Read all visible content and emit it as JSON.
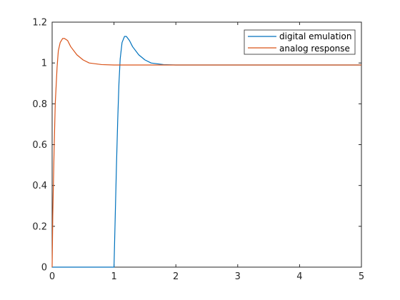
{
  "chart_data": {
    "type": "line",
    "title": "",
    "xlabel": "",
    "ylabel": "",
    "xlim": [
      0,
      5
    ],
    "ylim": [
      0,
      1.2
    ],
    "xticks": [
      "0",
      "1",
      "2",
      "3",
      "4",
      "5"
    ],
    "yticks": [
      "0",
      "0.2",
      "0.4",
      "0.6",
      "0.8",
      "1",
      "1.2"
    ],
    "grid": false,
    "legend_position": "top-right",
    "series": [
      {
        "name": "digital emulation",
        "color": "#0072BD",
        "points": [
          [
            0,
            0
          ],
          [
            0.5,
            0
          ],
          [
            0.99,
            0
          ],
          [
            1.0,
            0.0
          ],
          [
            1.02,
            0.25
          ],
          [
            1.04,
            0.5
          ],
          [
            1.06,
            0.72
          ],
          [
            1.08,
            0.9
          ],
          [
            1.1,
            1.02
          ],
          [
            1.13,
            1.1
          ],
          [
            1.17,
            1.13
          ],
          [
            1.2,
            1.13
          ],
          [
            1.25,
            1.11
          ],
          [
            1.3,
            1.08
          ],
          [
            1.4,
            1.04
          ],
          [
            1.5,
            1.015
          ],
          [
            1.6,
            1.0
          ],
          [
            1.8,
            0.992
          ],
          [
            2.0,
            0.99
          ],
          [
            3.0,
            0.99
          ],
          [
            4.0,
            0.99
          ],
          [
            5.0,
            0.99
          ]
        ]
      },
      {
        "name": "analog response",
        "color": "#D95319",
        "points": [
          [
            0,
            0
          ],
          [
            0.01,
            0.25
          ],
          [
            0.03,
            0.55
          ],
          [
            0.05,
            0.8
          ],
          [
            0.08,
            0.98
          ],
          [
            0.1,
            1.06
          ],
          [
            0.13,
            1.1
          ],
          [
            0.17,
            1.12
          ],
          [
            0.2,
            1.12
          ],
          [
            0.25,
            1.11
          ],
          [
            0.3,
            1.08
          ],
          [
            0.4,
            1.04
          ],
          [
            0.5,
            1.015
          ],
          [
            0.6,
            1.0
          ],
          [
            0.8,
            0.992
          ],
          [
            1.0,
            0.99
          ],
          [
            2.0,
            0.99
          ],
          [
            3.0,
            0.99
          ],
          [
            4.0,
            0.99
          ],
          [
            5.0,
            0.99
          ]
        ]
      }
    ]
  }
}
